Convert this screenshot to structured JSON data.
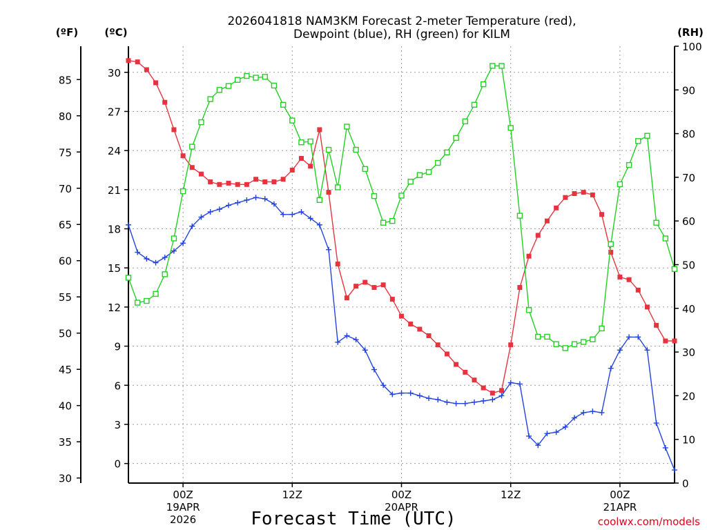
{
  "chart_data": {
    "type": "line",
    "title_lines": [
      "2026041818 NAM3KM Forecast 2-meter Temperature (red),",
      "Dewpoint (blue), RH (green) for KILM"
    ],
    "xlabel": "Forecast Time (UTC)",
    "credit": "coolwx.com/models",
    "y_units": {
      "f": "(ºF)",
      "c": "(ºC)",
      "rh": "(RH)"
    },
    "c_ylim": [
      -1.5,
      32
    ],
    "rh_ylim": [
      0,
      100
    ],
    "f_ticks": [
      "30",
      "35",
      "40",
      "45",
      "50",
      "55",
      "60",
      "65",
      "70",
      "75",
      "80",
      "85"
    ],
    "c_ticks": [
      "0",
      "3",
      "6",
      "9",
      "12",
      "15",
      "18",
      "21",
      "24",
      "27",
      "30"
    ],
    "rh_ticks": [
      "0",
      "10",
      "20",
      "30",
      "40",
      "50",
      "60",
      "70",
      "80",
      "90",
      "100"
    ],
    "x_range_hours": [
      0,
      60
    ],
    "x_ticks": [
      {
        "hour": 6,
        "lines": [
          "00Z",
          "19APR",
          "2026"
        ]
      },
      {
        "hour": 18,
        "lines": [
          "12Z"
        ]
      },
      {
        "hour": 30,
        "lines": [
          "00Z",
          "20APR"
        ]
      },
      {
        "hour": 42,
        "lines": [
          "12Z"
        ]
      },
      {
        "hour": 54,
        "lines": [
          "00Z",
          "21APR"
        ]
      }
    ],
    "grid": true,
    "series": [
      {
        "name": "2-meter Temperature",
        "color": "#e8323e",
        "marker": "filled-square",
        "axis": "c",
        "values": [
          30.9,
          30.8,
          30.2,
          29.2,
          27.7,
          25.6,
          23.6,
          22.7,
          22.2,
          21.6,
          21.4,
          21.5,
          21.4,
          21.4,
          21.8,
          21.6,
          21.6,
          21.8,
          22.5,
          23.4,
          22.8,
          25.6,
          20.8,
          15.3,
          12.7,
          13.6,
          13.9,
          13.5,
          13.7,
          12.6,
          11.3,
          10.7,
          10.3,
          9.8,
          9.1,
          8.4,
          7.6,
          7.0,
          6.4,
          5.8,
          5.4,
          5.6,
          9.1,
          13.5,
          15.9,
          17.5,
          18.6,
          19.6,
          20.4,
          20.7,
          20.8,
          20.6,
          19.1,
          16.2,
          14.3,
          14.1,
          13.3,
          12.0,
          10.6,
          9.4,
          9.4
        ]
      },
      {
        "name": "Dewpoint",
        "color": "#2142e0",
        "marker": "plus",
        "axis": "c",
        "values": [
          18.3,
          16.2,
          15.7,
          15.4,
          15.8,
          16.3,
          16.9,
          18.2,
          18.9,
          19.3,
          19.5,
          19.8,
          20.0,
          20.2,
          20.4,
          20.3,
          19.9,
          19.1,
          19.1,
          19.3,
          18.8,
          18.3,
          16.4,
          9.3,
          9.8,
          9.5,
          8.7,
          7.2,
          6.0,
          5.3,
          5.4,
          5.4,
          5.2,
          5.0,
          4.9,
          4.7,
          4.6,
          4.6,
          4.7,
          4.8,
          4.9,
          5.2,
          6.2,
          6.1,
          2.1,
          1.4,
          2.3,
          2.4,
          2.8,
          3.5,
          3.9,
          4.0,
          3.9,
          7.3,
          8.7,
          9.7,
          9.7,
          8.7,
          3.1,
          1.2,
          -0.5
        ]
      },
      {
        "name": "RH",
        "color": "#21d021",
        "marker": "open-square",
        "axis": "rh",
        "values": [
          47,
          41.3,
          41.7,
          43.3,
          47.8,
          56,
          66.8,
          77,
          82.6,
          87.9,
          90,
          90.9,
          92.3,
          93.2,
          92.8,
          93,
          91,
          86.6,
          83,
          78,
          78.2,
          64.8,
          76.3,
          67.7,
          81.6,
          76.3,
          71.9,
          65.7,
          59.6,
          60,
          65.8,
          69,
          70.5,
          71.2,
          73.3,
          75.7,
          79,
          82.8,
          86.6,
          91.3,
          95.5,
          95.5,
          81.3,
          61.2,
          39.6,
          33.5,
          33.5,
          31.8,
          30.9,
          31.8,
          32.3,
          32.9,
          35.4,
          54.7,
          68.4,
          72.8,
          78.3,
          79.5,
          59.6,
          56,
          49
        ]
      }
    ]
  }
}
